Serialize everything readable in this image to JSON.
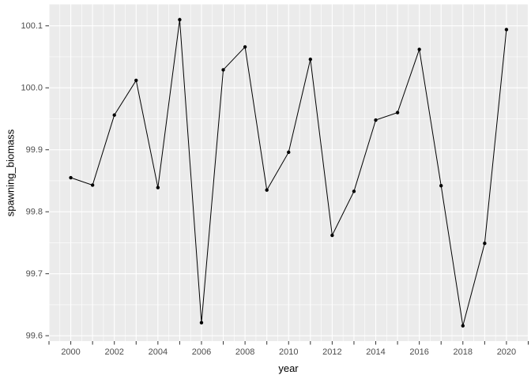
{
  "chart_data": {
    "type": "line",
    "title": "",
    "xlabel": "year",
    "ylabel": "spawning_biomass",
    "x": [
      2000,
      2001,
      2002,
      2003,
      2004,
      2005,
      2006,
      2007,
      2008,
      2009,
      2010,
      2011,
      2012,
      2013,
      2014,
      2015,
      2016,
      2017,
      2018,
      2019,
      2020
    ],
    "y": [
      99.855,
      99.843,
      99.956,
      100.012,
      99.839,
      100.11,
      99.621,
      100.029,
      100.066,
      99.835,
      99.896,
      100.046,
      99.762,
      99.833,
      99.948,
      99.96,
      100.062,
      99.842,
      99.616,
      99.749,
      100.094
    ],
    "xlim": [
      1999,
      2021
    ],
    "ylim": [
      99.5913,
      100.1347
    ],
    "x_tick_years": [
      1999,
      2000,
      2001,
      2002,
      2003,
      2004,
      2005,
      2006,
      2007,
      2008,
      2009,
      2010,
      2011,
      2012,
      2013,
      2014,
      2015,
      2016,
      2017,
      2018,
      2019,
      2020,
      2021
    ],
    "x_label_years": [
      2000,
      2002,
      2004,
      2006,
      2008,
      2010,
      2012,
      2014,
      2016,
      2018,
      2020
    ],
    "x_label_texts": [
      "2000",
      "2002",
      "2004",
      "2006",
      "2008",
      "2010",
      "2012",
      "2014",
      "2016",
      "2018",
      "2020"
    ],
    "y_tick_values": [
      99.6,
      99.7,
      99.8,
      99.9,
      100.0,
      100.1
    ],
    "y_tick_labels": [
      "99.6",
      "99.7",
      "99.8",
      "99.9",
      "100.0",
      "100.1"
    ],
    "grid": true,
    "legend": "none",
    "style": {
      "panel_bg": "#EBEBEB",
      "grid_major_color": "#FFFFFF",
      "grid_minor_color": "#FFFFFF",
      "line_color": "#000000",
      "point_color": "#000000",
      "axis_text_color": "#4D4D4D",
      "axis_title_color": "#000000",
      "tick_mark_color": "#333333"
    }
  }
}
